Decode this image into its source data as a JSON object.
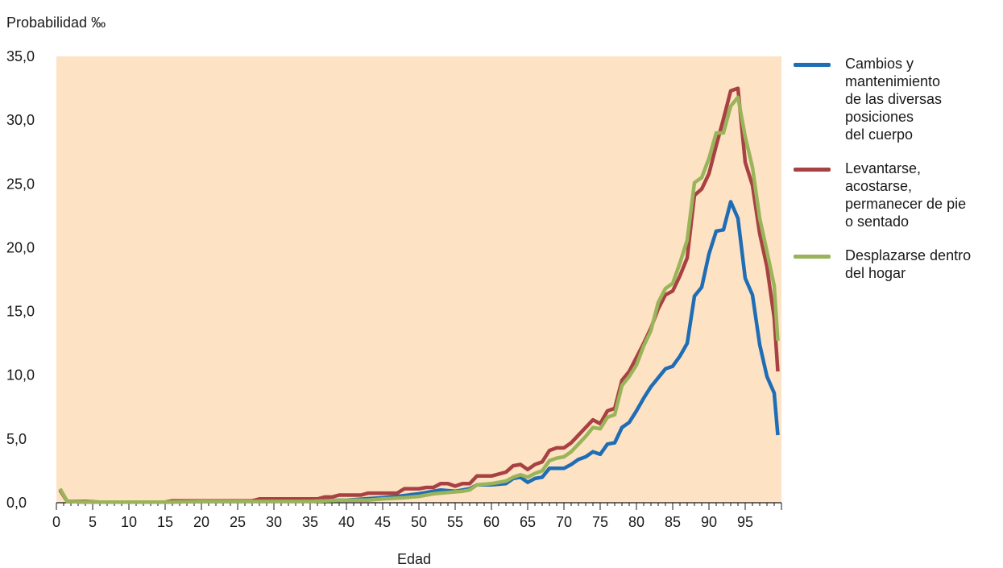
{
  "chart_data": {
    "type": "line",
    "title": "",
    "ylabel": "Probabilidad ‰",
    "xlabel": "Edad",
    "xlim": [
      0,
      100
    ],
    "ylim": [
      0,
      35
    ],
    "x_ticks": [
      0,
      5,
      10,
      15,
      20,
      25,
      30,
      35,
      40,
      45,
      50,
      55,
      60,
      65,
      70,
      75,
      80,
      85,
      90,
      95
    ],
    "x_tick_labels": [
      "0",
      "5",
      "10",
      "15",
      "20",
      "25",
      "30",
      "35",
      "40",
      "45",
      "50",
      "55",
      "60",
      "65",
      "70",
      "75",
      "80",
      "85",
      "90",
      "95"
    ],
    "y_ticks": [
      0,
      5,
      10,
      15,
      20,
      25,
      30,
      35
    ],
    "y_tick_labels": [
      "0,0",
      "5,0",
      "10,0",
      "15,0",
      "20,0",
      "25,0",
      "30,0",
      "35,0"
    ],
    "background": "#fde2c4",
    "legend_position": "right",
    "series": [
      {
        "name": "Cambios y\nmantenimiento\nde las diversas\nposiciones\ndel cuerpo",
        "color": "#1f6db5",
        "x": [
          0.5,
          1.5,
          4,
          10,
          15,
          20,
          25,
          30,
          35,
          40,
          45,
          47,
          50,
          53,
          55,
          57,
          58,
          60,
          62,
          63,
          64,
          65,
          66,
          67,
          68,
          69,
          70,
          71,
          72,
          73,
          74,
          75,
          76,
          77,
          78,
          79,
          80,
          81,
          82,
          83,
          84,
          85,
          86,
          87,
          88,
          89,
          90,
          91,
          92,
          93,
          94,
          95,
          96,
          97,
          98,
          99
        ],
        "values": [
          1.0,
          0.1,
          0.05,
          0.05,
          0.05,
          0.1,
          0.1,
          0.15,
          0.15,
          0.2,
          0.4,
          0.5,
          0.7,
          1.0,
          0.9,
          1.1,
          1.4,
          1.4,
          1.5,
          1.9,
          2.0,
          1.6,
          1.9,
          2.0,
          2.7,
          2.7,
          2.7,
          3.0,
          3.4,
          3.6,
          4.0,
          3.8,
          4.6,
          4.7,
          5.9,
          6.3,
          7.2,
          8.2,
          9.1,
          9.8,
          10.5,
          10.7,
          11.5,
          12.5,
          16.2,
          16.9,
          19.5,
          21.3,
          21.4,
          23.6,
          22.3,
          17.6,
          16.3,
          12.4,
          9.9,
          8.6
        ],
        "end": [
          99.5,
          5.3
        ]
      },
      {
        "name": "Levantarse,\nacostarse,\npermanecer de pie\no sentado",
        "color": "#a84142",
        "x": [
          0.5,
          1.5,
          4,
          6,
          10,
          15,
          16,
          20,
          25,
          27,
          28,
          30,
          35,
          36,
          37,
          38,
          39,
          40,
          42,
          43,
          45,
          47,
          48,
          50,
          51,
          52,
          53,
          54,
          55,
          56,
          57,
          58,
          60,
          62,
          63,
          64,
          65,
          66,
          67,
          68,
          69,
          70,
          71,
          72,
          73,
          74,
          75,
          76,
          77,
          78,
          79,
          80,
          81,
          82,
          83,
          84,
          85,
          86,
          87,
          88,
          89,
          90,
          91,
          92,
          93,
          94,
          95,
          96,
          97,
          98,
          99
        ],
        "values": [
          1.0,
          0.1,
          0.1,
          0.05,
          0.05,
          0.05,
          0.15,
          0.15,
          0.15,
          0.15,
          0.3,
          0.3,
          0.3,
          0.3,
          0.45,
          0.45,
          0.6,
          0.6,
          0.6,
          0.75,
          0.75,
          0.75,
          1.1,
          1.1,
          1.2,
          1.2,
          1.5,
          1.5,
          1.3,
          1.5,
          1.5,
          2.1,
          2.1,
          2.4,
          2.9,
          3.0,
          2.6,
          3.0,
          3.2,
          4.1,
          4.3,
          4.3,
          4.7,
          5.3,
          5.9,
          6.5,
          6.2,
          7.2,
          7.4,
          9.6,
          10.3,
          11.4,
          12.5,
          13.7,
          15.2,
          16.3,
          16.6,
          17.8,
          19.2,
          24.1,
          24.6,
          25.8,
          28.0,
          30.1,
          32.3,
          32.5,
          26.7,
          24.9,
          21.1,
          18.5,
          14.5
        ],
        "end": [
          99.5,
          10.3
        ]
      },
      {
        "name": "Desplazarse dentro\ndel hogar",
        "color": "#9ab45a",
        "x": [
          0.5,
          1.5,
          4,
          10,
          15,
          20,
          25,
          30,
          35,
          40,
          43,
          45,
          48,
          50,
          52,
          54,
          56,
          57,
          58,
          60,
          62,
          63,
          64,
          65,
          66,
          67,
          68,
          69,
          70,
          71,
          72,
          73,
          74,
          75,
          76,
          77,
          78,
          79,
          80,
          81,
          82,
          83,
          84,
          85,
          86,
          87,
          88,
          89,
          90,
          91,
          92,
          93,
          94,
          95,
          96,
          97,
          98,
          99
        ],
        "values": [
          1.1,
          0.1,
          0.05,
          0.05,
          0.05,
          0.1,
          0.1,
          0.1,
          0.1,
          0.2,
          0.2,
          0.3,
          0.4,
          0.5,
          0.7,
          0.8,
          0.9,
          1.0,
          1.4,
          1.5,
          1.7,
          2.0,
          2.2,
          2.0,
          2.3,
          2.5,
          3.3,
          3.5,
          3.6,
          4.0,
          4.6,
          5.2,
          5.9,
          5.8,
          6.7,
          6.9,
          9.2,
          9.9,
          10.8,
          12.3,
          13.5,
          15.7,
          16.8,
          17.2,
          18.8,
          20.6,
          25.1,
          25.5,
          27.0,
          29.0,
          29.0,
          31.1,
          31.8,
          28.7,
          26.3,
          22.3,
          19.7,
          17.0
        ],
        "end": [
          99.5,
          12.7
        ]
      }
    ]
  }
}
